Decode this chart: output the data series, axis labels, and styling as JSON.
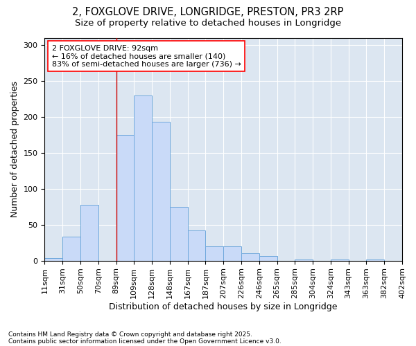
{
  "title_line1": "2, FOXGLOVE DRIVE, LONGRIDGE, PRESTON, PR3 2RP",
  "title_line2": "Size of property relative to detached houses in Longridge",
  "xlabel": "Distribution of detached houses by size in Longridge",
  "ylabel": "Number of detached properties",
  "footnote_line1": "Contains HM Land Registry data © Crown copyright and database right 2025.",
  "footnote_line2": "Contains public sector information licensed under the Open Government Licence v3.0.",
  "bin_labels": [
    "11sqm",
    "31sqm",
    "50sqm",
    "70sqm",
    "89sqm",
    "109sqm",
    "128sqm",
    "148sqm",
    "167sqm",
    "187sqm",
    "207sqm",
    "226sqm",
    "246sqm",
    "265sqm",
    "285sqm",
    "304sqm",
    "324sqm",
    "343sqm",
    "363sqm",
    "382sqm",
    "402sqm"
  ],
  "bar_values": [
    4,
    33,
    78,
    0,
    175,
    230,
    193,
    75,
    42,
    20,
    20,
    10,
    6,
    0,
    2,
    0,
    2,
    0,
    2,
    0
  ],
  "bar_color": "#c9daf8",
  "bar_edge_color": "#6fa8dc",
  "chart_bg_color": "#dce6f1",
  "fig_bg_color": "#ffffff",
  "annotation_text_line1": "2 FOXGLOVE DRIVE: 92sqm",
  "annotation_text_line2": "← 16% of detached houses are smaller (140)",
  "annotation_text_line3": "83% of semi-detached houses are larger (736) →",
  "vline_color": "#cc0000",
  "vline_x": 4,
  "ylim": [
    0,
    310
  ],
  "yticks": [
    0,
    50,
    100,
    150,
    200,
    250,
    300
  ],
  "title_fontsize": 10.5,
  "subtitle_fontsize": 9.5,
  "axis_label_fontsize": 9,
  "tick_fontsize": 8,
  "annotation_fontsize": 8,
  "footnote_fontsize": 6.5
}
